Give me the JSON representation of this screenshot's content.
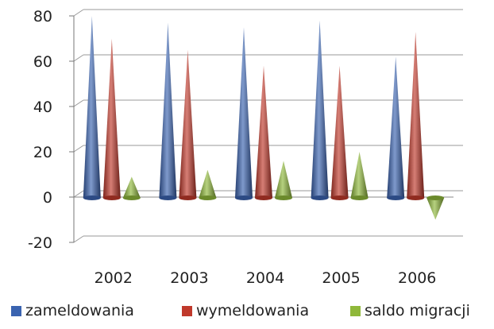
{
  "chart_data": {
    "type": "bar",
    "style": "3d-cone",
    "categories": [
      "2002",
      "2003",
      "2004",
      "2005",
      "2006"
    ],
    "series": [
      {
        "name": "zameldowania",
        "values": [
          80,
          77,
          75,
          78,
          62
        ],
        "color": "#3a63b0"
      },
      {
        "name": "wymeldowania",
        "values": [
          70,
          65,
          58,
          58,
          73
        ],
        "color": "#c0392b"
      },
      {
        "name": "saldo migracji",
        "values": [
          9,
          12,
          16,
          20,
          -10
        ],
        "color": "#8fb83a"
      }
    ],
    "y_ticks": [
      "80",
      "60",
      "40",
      "20",
      "0",
      "-20"
    ],
    "ylim": [
      -20,
      80
    ],
    "grid": true,
    "legend_position": "bottom"
  }
}
